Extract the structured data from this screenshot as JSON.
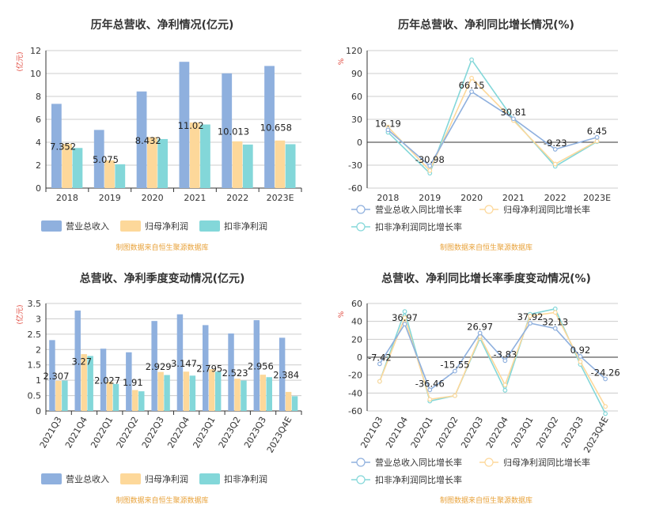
{
  "source_note": "制图数据来自恒生聚源数据库",
  "colors": {
    "revenue": "#8fb0de",
    "netprofit": "#fdd89a",
    "deducted": "#83d7d9",
    "grid": "#cccccc",
    "unit": "#e0453a",
    "source": "#e8a23a"
  },
  "chart_data": [
    {
      "id": "annual-bar",
      "type": "bar",
      "title": "历年总营收、净利情况(亿元)",
      "ylabel": "(亿元)",
      "categories": [
        "2018",
        "2019",
        "2020",
        "2021",
        "2022",
        "2023E"
      ],
      "ylim": [
        0,
        12
      ],
      "yticks": [
        0,
        2,
        4,
        6,
        8,
        10,
        12
      ],
      "series": [
        {
          "name": "营业总收入",
          "values": [
            7.352,
            5.075,
            8.432,
            11.02,
            10.013,
            10.658
          ]
        },
        {
          "name": "归母净利润",
          "values": [
            3.85,
            2.42,
            4.45,
            5.72,
            4.08,
            4.15
          ]
        },
        {
          "name": "扣非净利润",
          "values": [
            3.5,
            2.08,
            4.28,
            5.55,
            3.8,
            3.83
          ]
        }
      ],
      "data_labels": [
        "7.352",
        "5.075",
        "8.432",
        "11.02",
        "10.013",
        "10.658"
      ],
      "legend": "bottom",
      "grid": true
    },
    {
      "id": "annual-line",
      "type": "line",
      "title": "历年总营收、净利同比增长情况(%)",
      "ylabel": "%",
      "categories": [
        "2018",
        "2019",
        "2020",
        "2021",
        "2022",
        "2023E"
      ],
      "ylim": [
        -60,
        120
      ],
      "yticks": [
        -60,
        -30,
        0,
        30,
        60,
        90,
        120
      ],
      "series": [
        {
          "name": "营业总收入同比增长率",
          "values": [
            16.19,
            -30.98,
            66.15,
            30.81,
            -9.23,
            6.45
          ]
        },
        {
          "name": "归母净利润同比增长率",
          "values": [
            20.0,
            -37.0,
            84.0,
            28.5,
            -28.5,
            1.5
          ]
        },
        {
          "name": "扣非净利润同比增长率",
          "values": [
            13.0,
            -40.5,
            108.0,
            30.0,
            -31.5,
            0.8
          ]
        }
      ],
      "data_labels": [
        "16.19",
        "-30.98",
        "66.15",
        "30.81",
        "-9.23",
        "6.45"
      ],
      "legend": "bottom",
      "grid": true
    },
    {
      "id": "quarter-bar",
      "type": "bar",
      "title": "总营收、净利季度变动情况(亿元)",
      "ylabel": "(亿元)",
      "categories": [
        "2021Q3",
        "2021Q4",
        "2022Q1",
        "2022Q2",
        "2022Q3",
        "2022Q4",
        "2023Q1",
        "2023Q2",
        "2023Q3",
        "2023Q4E"
      ],
      "ylim": [
        0,
        3.5
      ],
      "yticks": [
        0,
        0.5,
        1,
        1.5,
        2,
        2.5,
        3,
        3.5
      ],
      "series": [
        {
          "name": "营业总收入",
          "values": [
            2.307,
            3.27,
            2.027,
            1.91,
            2.929,
            3.147,
            2.795,
            2.523,
            2.956,
            2.384
          ]
        },
        {
          "name": "归母净利润",
          "values": [
            0.98,
            1.85,
            0.95,
            0.68,
            1.27,
            1.28,
            1.36,
            1.05,
            1.18,
            0.62
          ]
        },
        {
          "name": "扣非净利润",
          "values": [
            0.99,
            1.79,
            0.88,
            0.64,
            1.17,
            1.15,
            1.28,
            0.99,
            1.1,
            0.48
          ]
        }
      ],
      "data_labels": [
        "2.307",
        "3.27",
        "2.027",
        "1.91",
        "2.929",
        "3.147",
        "2.795",
        "2.523",
        "2.956",
        "2.384"
      ],
      "legend": "bottom",
      "grid": true
    },
    {
      "id": "quarter-line",
      "type": "line",
      "title": "总营收、净利同比增长率季度变动情况(%)",
      "ylabel": "%",
      "categories": [
        "2021Q3",
        "2021Q4",
        "2022Q1",
        "2022Q2",
        "2022Q3",
        "2022Q4",
        "2023Q1",
        "2023Q2",
        "2023Q3",
        "2023Q4E"
      ],
      "ylim": [
        -60,
        60
      ],
      "yticks": [
        -60,
        -40,
        -20,
        0,
        20,
        40,
        60
      ],
      "series": [
        {
          "name": "营业总收入同比增长率",
          "values": [
            -7.42,
            36.97,
            -36.46,
            -15.55,
            26.97,
            -3.83,
            37.92,
            32.13,
            0.92,
            -24.26
          ]
        },
        {
          "name": "归母净利润同比增长率",
          "values": [
            -27.0,
            44.0,
            -47.0,
            -43.0,
            23.0,
            -31.0,
            46.0,
            50.0,
            -5.0,
            -55.0
          ]
        },
        {
          "name": "扣非净利润同比增长率",
          "values": [
            -27.0,
            51.0,
            -49.0,
            -43.0,
            21.0,
            -37.0,
            48.0,
            54.0,
            -8.0,
            -63.0
          ]
        }
      ],
      "data_labels": [
        "-7.42",
        "36.97",
        "-36.46",
        "-15.55",
        "26.97",
        "-3.83",
        "37.92",
        "32.13",
        "0.92",
        "-24.26"
      ],
      "legend": "bottom",
      "grid": true
    }
  ]
}
